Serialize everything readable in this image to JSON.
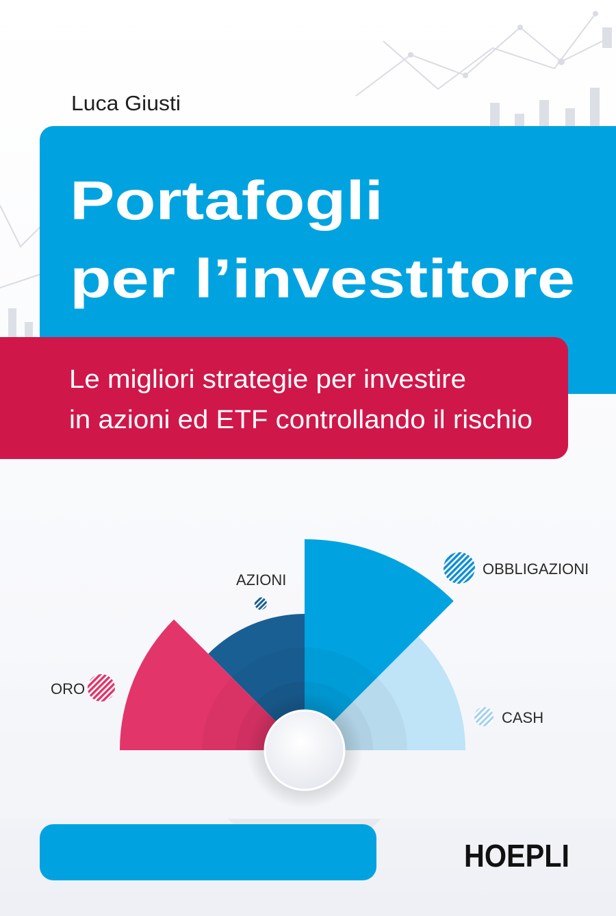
{
  "author": "Luca Giusti",
  "title": {
    "lines": [
      "Portafogli",
      "per l’investitore"
    ]
  },
  "subtitle": {
    "lines": [
      "Le migliori strategie per investire",
      "in azioni ed ETF controllando il rischio"
    ]
  },
  "illustration": {
    "labels": [
      "AZIONI",
      "OBBLIGAZIONI",
      "ORO",
      "CASH"
    ]
  },
  "publisher": "HOEPLI"
}
